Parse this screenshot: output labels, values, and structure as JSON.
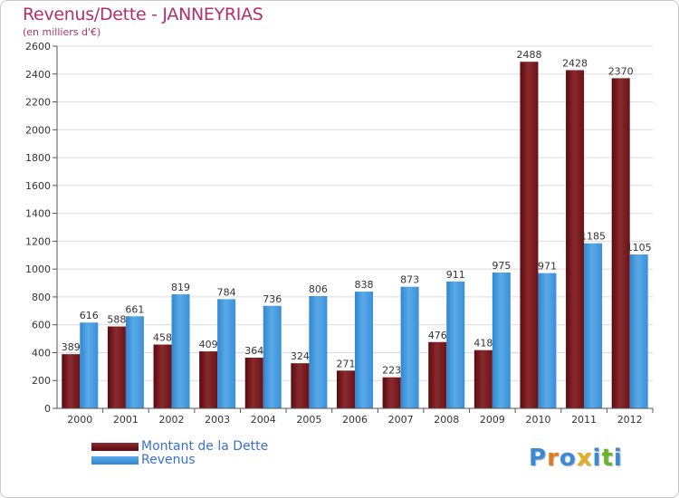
{
  "chart_data": {
    "type": "bar",
    "title": "Revenus/Dette - JANNEYRIAS",
    "subtitle": "(en milliers d'€)",
    "categories": [
      "2000",
      "2001",
      "2002",
      "2003",
      "2004",
      "2005",
      "2006",
      "2007",
      "2008",
      "2009",
      "2010",
      "2011",
      "2012"
    ],
    "series": [
      {
        "name": "Montant de la Dette",
        "color": "#7a1a1e",
        "values": [
          389,
          588,
          458,
          409,
          364,
          324,
          271,
          223,
          476,
          418,
          2488,
          2428,
          2370
        ]
      },
      {
        "name": "Revenus",
        "color": "#3f97dd",
        "values": [
          616,
          661,
          819,
          784,
          736,
          806,
          838,
          873,
          911,
          975,
          971,
          1185,
          1105
        ]
      }
    ],
    "ylim": [
      0,
      2600
    ],
    "yticks": [
      0,
      200,
      400,
      600,
      800,
      1000,
      1200,
      1400,
      1600,
      1800,
      2000,
      2200,
      2400,
      2600
    ],
    "grid": true,
    "legend": "bottom-left"
  },
  "logo": {
    "letters": [
      "P",
      "r",
      "o",
      "x",
      "i",
      "t",
      "i"
    ],
    "colors": [
      "#3b8ad8",
      "#e07b1f",
      "#3b8ad8",
      "#e0b020",
      "#3b8ad8",
      "#6ab42d",
      "#3b8ad8"
    ]
  }
}
